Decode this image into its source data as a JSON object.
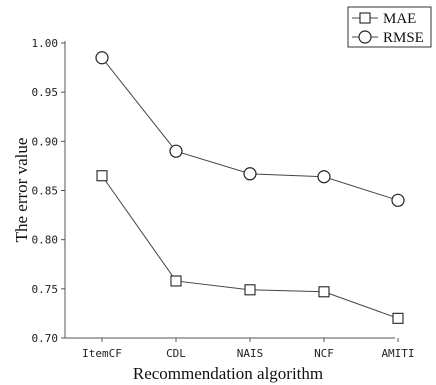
{
  "chart_data": {
    "type": "line",
    "title": "",
    "xlabel": "Recommendation algorithm",
    "ylabel": "The error value",
    "categories": [
      "ItemCF",
      "CDL",
      "NAIS",
      "NCF",
      "AMITI"
    ],
    "yticks": [
      "0.70",
      "0.75",
      "0.80",
      "0.85",
      "0.90",
      "0.95",
      "1.00"
    ],
    "ylim": [
      0.7,
      1.0
    ],
    "grid": false,
    "legend_position": "top-right",
    "series": [
      {
        "name": "MAE",
        "marker": "square",
        "values": [
          0.865,
          0.758,
          0.749,
          0.747,
          0.72
        ]
      },
      {
        "name": "RMSE",
        "marker": "circle",
        "values": [
          0.985,
          0.89,
          0.867,
          0.864,
          0.84
        ]
      }
    ],
    "colors": {
      "line": "#444444",
      "marker_stroke": "#222222",
      "marker_fill": "#ffffff"
    }
  }
}
